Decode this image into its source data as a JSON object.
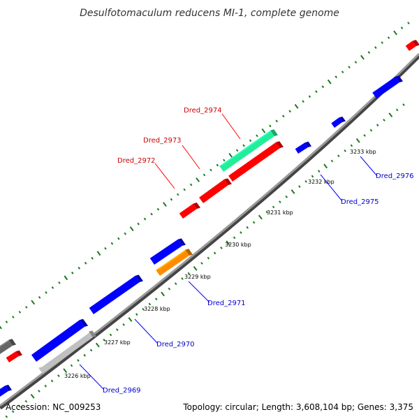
{
  "title": "Desulfotomaculum reducens MI-1, complete genome",
  "footer": {
    "accession": "Accession: NC_009253",
    "summary": "Topology: circular; Length: 3,608,104 bp; Genes: 3,375"
  },
  "colors": {
    "forward": "#ff0000",
    "reverse": "#0000ff",
    "orange": "#ff8c00",
    "green": "#22ee99",
    "gray": "#666666",
    "steel": "#4a7fb0",
    "silver": "#c0c0c0",
    "backbone": "#808080",
    "ticks": "#1a7a1a",
    "label_forward": "#cc0000",
    "label_reverse": "#0000cc"
  },
  "kbp_labels": [
    "3226 kbp",
    "3227 kbp",
    "3228 kbp",
    "3229 kbp",
    "3230 kbp",
    "3231 kbp",
    "3232 kbp",
    "3233 kbp"
  ],
  "gene_labels": [
    {
      "name": "Dred_2972",
      "strand": "forward"
    },
    {
      "name": "Dred_2973",
      "strand": "forward"
    },
    {
      "name": "Dred_2974",
      "strand": "forward"
    },
    {
      "name": "Dred_2969",
      "strand": "reverse"
    },
    {
      "name": "Dred_2970",
      "strand": "reverse"
    },
    {
      "name": "Dred_2971",
      "strand": "reverse"
    },
    {
      "name": "Dred_2975",
      "strand": "reverse"
    },
    {
      "name": "Dred_2976",
      "strand": "reverse"
    }
  ]
}
